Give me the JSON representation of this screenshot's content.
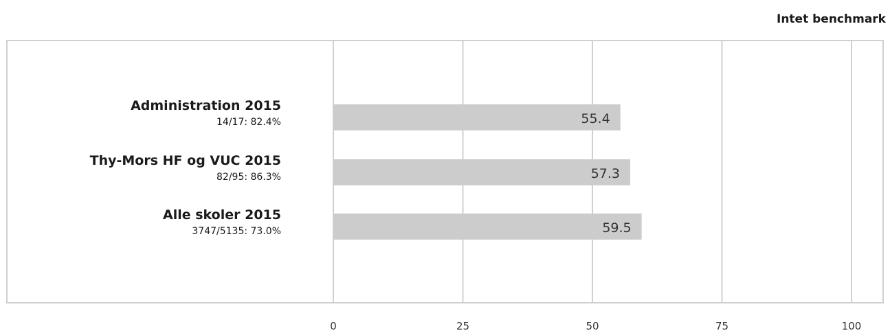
{
  "header": {
    "benchmark_label": "Intet benchmark"
  },
  "chart_data": {
    "type": "bar",
    "orientation": "horizontal",
    "title": "",
    "xlabel": "",
    "ylabel": "",
    "xlim": [
      0,
      100
    ],
    "x_ticks": [
      "0",
      "25",
      "50",
      "75",
      "100"
    ],
    "grid": true,
    "categories": [
      {
        "name": "Administration 2015",
        "sub": "14/17: 82.4%",
        "value": 55.4,
        "value_label": "55.4"
      },
      {
        "name": "Thy-Mors HF og VUC 2015",
        "sub": "82/95: 86.3%",
        "value": 57.3,
        "value_label": "57.3"
      },
      {
        "name": "Alle skoler 2015",
        "sub": "3747/5135: 73.0%",
        "value": 59.5,
        "value_label": "59.5"
      }
    ],
    "colors": {
      "bar": "#cccccc",
      "grid": "#d0d0d0",
      "text": "#1a1a1a"
    }
  }
}
